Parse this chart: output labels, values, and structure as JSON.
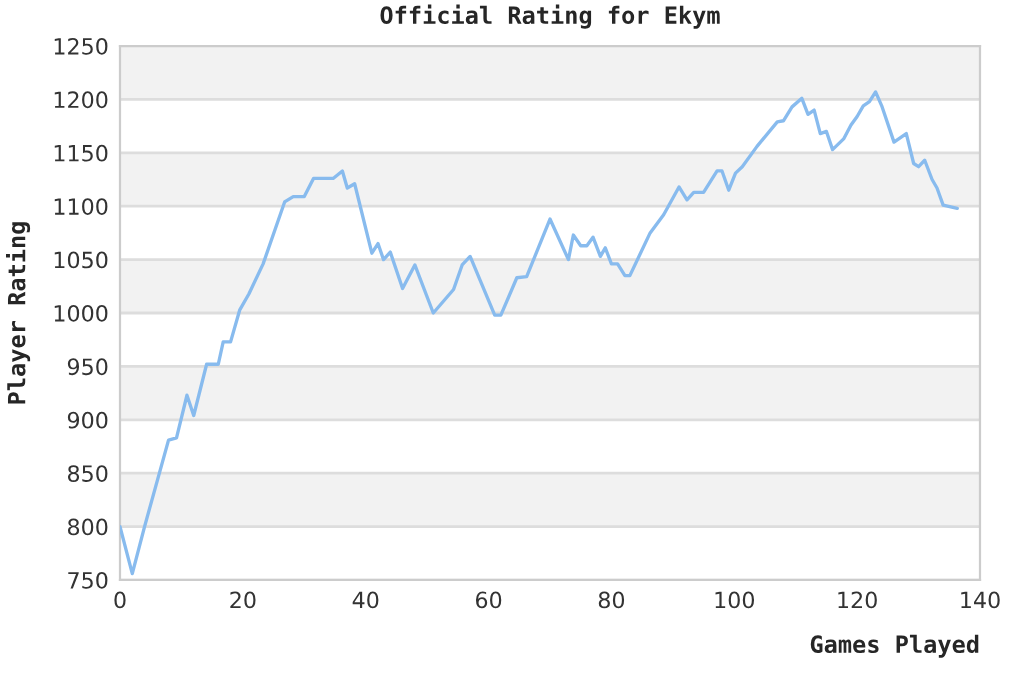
{
  "chart_data": {
    "type": "line",
    "title": "Official Rating for Ekym",
    "xlabel": "Games Played",
    "ylabel": "Player Rating",
    "series": [
      {
        "color": "#88bbee",
        "x": [
          0,
          2,
          4,
          7.9,
          9.2,
          10.9,
          12,
          14.1,
          16,
          16.8,
          18,
          19.5,
          21,
          23.3,
          26.8,
          28.2,
          30,
          31.5,
          34.7,
          36.2,
          37,
          38.2,
          41,
          42,
          42.9,
          44,
          46,
          48,
          51,
          54.3,
          55.7,
          57,
          61,
          62,
          64.6,
          66.2,
          70,
          73,
          73.8,
          75,
          76,
          77,
          78.2,
          79,
          80,
          81,
          82.2,
          83,
          86.3,
          88.5,
          91,
          92.3,
          93.4,
          95,
          97.2,
          98,
          99.1,
          100.2,
          101.3,
          103.7,
          107,
          108,
          109.4,
          111,
          112,
          113,
          114,
          115,
          116,
          117.8,
          119,
          120,
          121,
          122,
          123,
          124,
          126,
          128,
          129.2,
          130,
          131,
          132.2,
          133,
          134,
          136.3
        ],
        "values": [
          800,
          756,
          800,
          881,
          883,
          923,
          904,
          952,
          952,
          973,
          973,
          1003,
          1018,
          1046,
          1104,
          1109,
          1109,
          1126,
          1126,
          1133,
          1117,
          1121,
          1056,
          1065,
          1050,
          1057,
          1023,
          1045,
          1000,
          1022,
          1045,
          1053,
          998,
          998,
          1033,
          1034,
          1088,
          1050,
          1073,
          1063,
          1063,
          1071,
          1053,
          1061,
          1046,
          1046,
          1035,
          1035,
          1075,
          1092,
          1118,
          1106,
          1113,
          1113,
          1133,
          1133,
          1115,
          1131,
          1137,
          1156,
          1179,
          1180,
          1193,
          1201,
          1186,
          1190,
          1168,
          1170,
          1153,
          1163,
          1176,
          1184,
          1194,
          1198,
          1207,
          1194,
          1160,
          1168,
          1140,
          1137,
          1143,
          1125,
          1117,
          1101,
          1098
        ]
      }
    ],
    "xlim": [
      0,
      140
    ],
    "xticks": [
      0,
      20,
      40,
      60,
      80,
      100,
      120,
      140
    ],
    "ylim": [
      750,
      1250
    ],
    "yticks": [
      750,
      800,
      850,
      900,
      950,
      1000,
      1050,
      1100,
      1150,
      1200,
      1250
    ],
    "grid": "y",
    "line_style": "solid",
    "marker": "none",
    "bands": [
      {
        "axis": "y",
        "from": 800,
        "to": 850,
        "color": "#f2f2f2"
      },
      {
        "axis": "y",
        "from": 900,
        "to": 950,
        "color": "#f2f2f2"
      },
      {
        "axis": "y",
        "from": 1000,
        "to": 1050,
        "color": "#f2f2f2"
      },
      {
        "axis": "y",
        "from": 1100,
        "to": 1150,
        "color": "#f2f2f2"
      },
      {
        "axis": "y",
        "from": 1200,
        "to": 1250,
        "color": "#f2f2f2"
      }
    ]
  }
}
